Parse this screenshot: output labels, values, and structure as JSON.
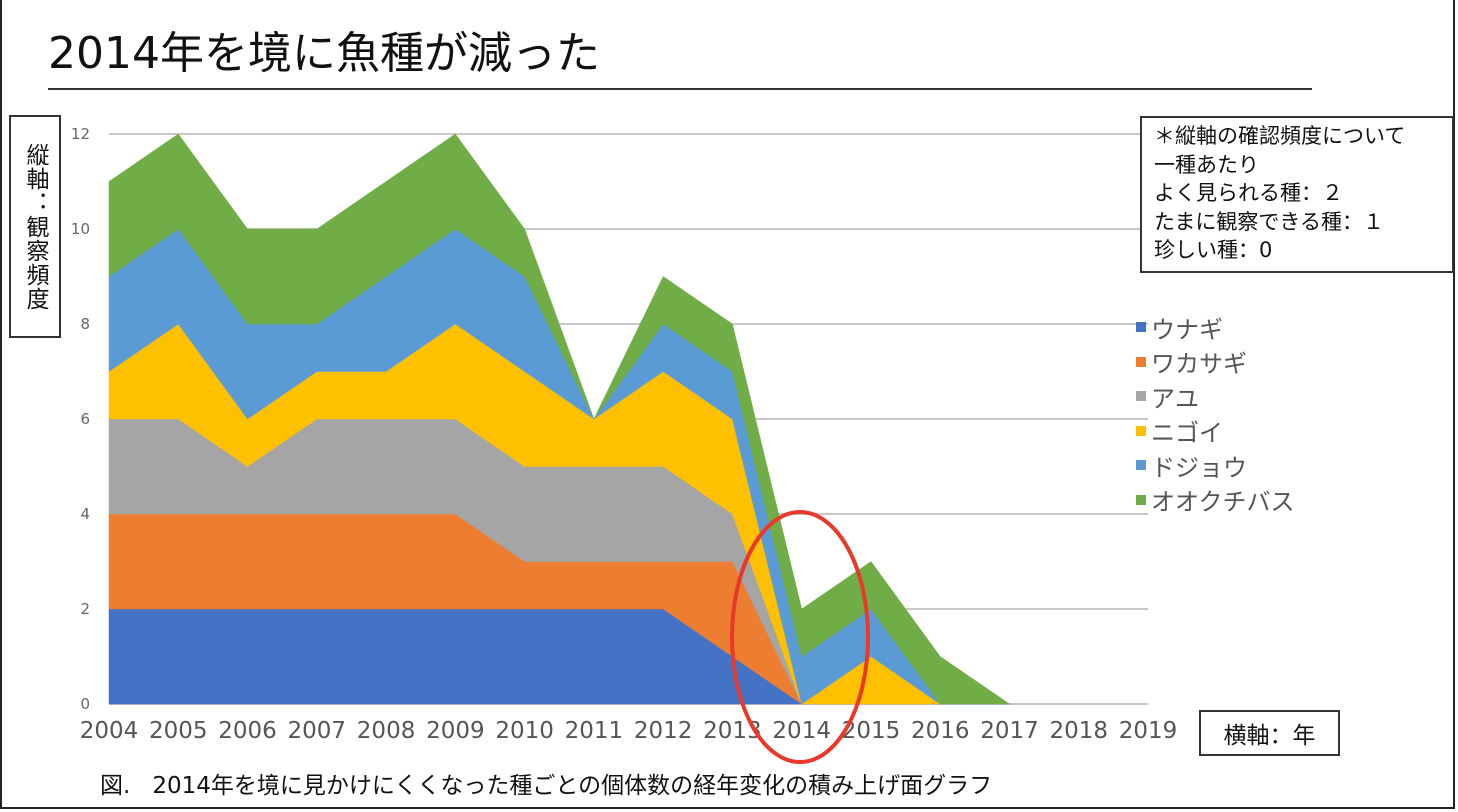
{
  "page": {
    "title": "2014年を境に魚種が減った",
    "caption_prefix": "図.",
    "caption": "2014年を境に見かけにくくなった種ごとの個体数の経年変化の積み上げ面グラフ"
  },
  "note": {
    "lines": [
      "＊縦軸の確認頻度について",
      "一種あたり",
      "よく見られる種：２",
      "たまに観察できる種：１",
      "珍しい種：0"
    ]
  },
  "chart_data": {
    "type": "area",
    "stacked": true,
    "title": "",
    "xlabel": "横軸：年",
    "ylabel": "縦軸：観察頻度",
    "x": [
      "2004",
      "2005",
      "2006",
      "2007",
      "2008",
      "2009",
      "2010",
      "2011",
      "2012",
      "2013",
      "2014",
      "2015",
      "2016",
      "2017",
      "2018",
      "2019"
    ],
    "ylim": [
      0,
      12
    ],
    "yticks": [
      "0",
      "2",
      "4",
      "6",
      "8",
      "10",
      "12"
    ],
    "grid": true,
    "legend_position": "right",
    "annotation": "red ellipse around 2014",
    "series": [
      {
        "name": "ウナギ",
        "color": "#4472c4",
        "values": [
          2,
          2,
          2,
          2,
          2,
          2,
          2,
          2,
          2,
          1,
          0,
          0,
          0,
          0,
          null,
          null
        ]
      },
      {
        "name": "ワカサギ",
        "color": "#ed7d31",
        "values": [
          2,
          2,
          2,
          2,
          2,
          2,
          1,
          1,
          1,
          2,
          0,
          0,
          0,
          0,
          null,
          null
        ]
      },
      {
        "name": "アユ",
        "color": "#a5a5a5",
        "values": [
          2,
          2,
          1,
          2,
          2,
          2,
          2,
          2,
          2,
          1,
          0,
          0,
          0,
          0,
          null,
          null
        ]
      },
      {
        "name": "ニゴイ",
        "color": "#ffc000",
        "values": [
          1,
          2,
          1,
          1,
          1,
          2,
          2,
          1,
          2,
          2,
          0,
          1,
          0,
          0,
          null,
          null
        ]
      },
      {
        "name": "ドジョウ",
        "color": "#5b9bd5",
        "values": [
          2,
          2,
          2,
          1,
          2,
          2,
          2,
          0,
          1,
          1,
          1,
          1,
          0,
          0,
          null,
          null
        ]
      },
      {
        "name": "オオクチバス",
        "color": "#70ad47",
        "values": [
          2,
          2,
          2,
          2,
          2,
          2,
          1,
          0,
          1,
          1,
          1,
          1,
          1,
          0,
          null,
          null
        ]
      }
    ],
    "annotation_color": "#e8392a"
  }
}
